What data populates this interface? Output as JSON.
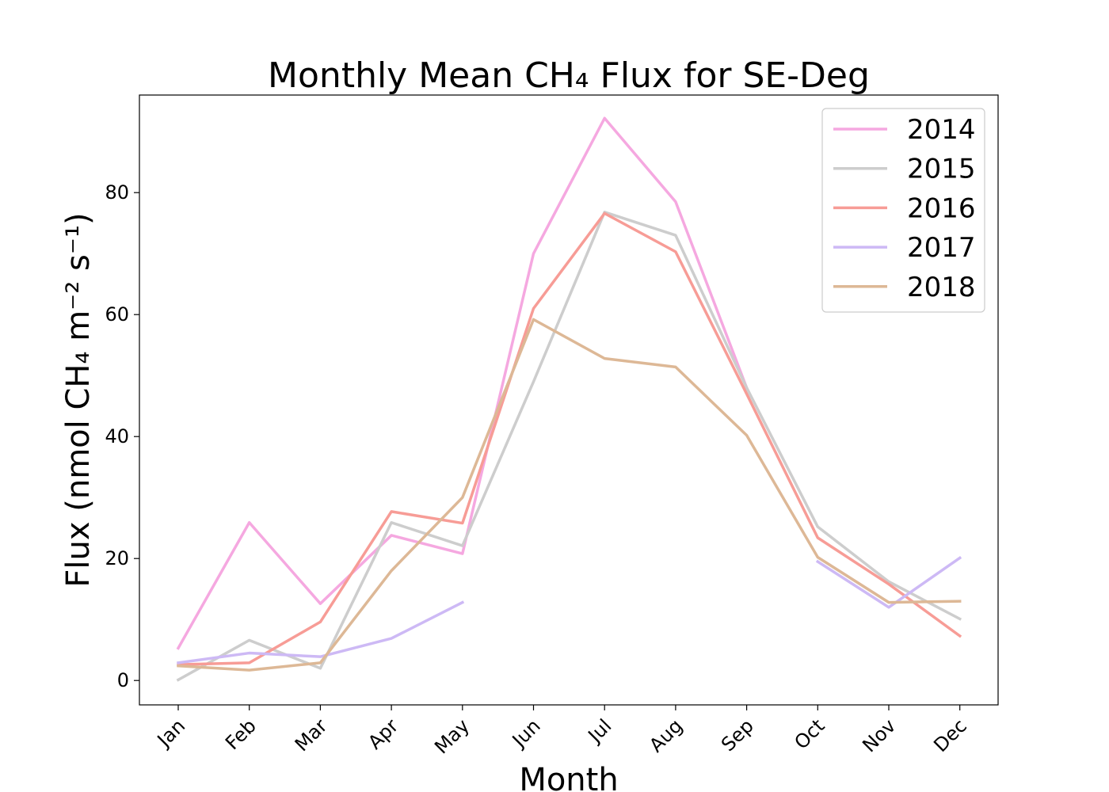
{
  "chart_data": {
    "type": "line",
    "title": "Monthly Mean CH₄ Flux for SE-Deg",
    "xlabel": "Month",
    "ylabel": "Flux (nmol CH₄ m⁻² s⁻¹)",
    "categories": [
      "Jan",
      "Feb",
      "Mar",
      "Apr",
      "May",
      "Jun",
      "Jul",
      "Aug",
      "Sep",
      "Oct",
      "Nov",
      "Dec"
    ],
    "ylim": [
      -4,
      96
    ],
    "yticks": [
      "0",
      "20",
      "40",
      "60",
      "80"
    ],
    "grid": false,
    "legend_position": "top-right",
    "series": [
      {
        "name": "2014",
        "color": "#f5a8e0",
        "values": [
          5.3,
          25.9,
          12.6,
          23.8,
          20.8,
          70.0,
          92.2,
          78.5,
          48.0,
          null,
          null,
          null
        ]
      },
      {
        "name": "2015",
        "color": "#cdcdcd",
        "values": [
          0.1,
          6.6,
          2.0,
          25.9,
          22.1,
          49.0,
          76.8,
          73.0,
          48.0,
          25.2,
          16.2,
          10.1
        ]
      },
      {
        "name": "2016",
        "color": "#f79c96",
        "values": [
          2.6,
          2.9,
          9.6,
          27.7,
          25.8,
          61.0,
          76.6,
          70.3,
          47.0,
          23.4,
          15.8,
          7.3
        ]
      },
      {
        "name": "2017",
        "color": "#cdb9f5",
        "values": [
          2.9,
          4.5,
          3.9,
          6.9,
          12.8,
          null,
          null,
          null,
          null,
          19.5,
          12.0,
          20.1
        ]
      },
      {
        "name": "2018",
        "color": "#ddb896",
        "values": [
          2.4,
          1.7,
          2.9,
          18.0,
          30.0,
          59.2,
          52.8,
          51.4,
          40.2,
          20.2,
          12.8,
          13.0
        ]
      }
    ]
  }
}
